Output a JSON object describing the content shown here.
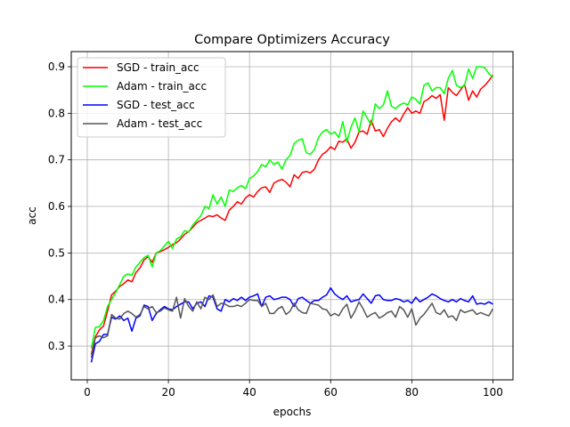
{
  "chart_data": {
    "type": "line",
    "title": "Compare Optimizers Accuracy",
    "xlabel": "epochs",
    "ylabel": "acc",
    "xlim": [
      -3.95,
      104.95
    ],
    "ylim": [
      0.2275,
      0.9325
    ],
    "xticks": [
      0,
      20,
      40,
      60,
      80,
      100
    ],
    "yticks": [
      0.3,
      0.4,
      0.5,
      0.6,
      0.7,
      0.8,
      0.9
    ],
    "grid": true,
    "legend_position": "top-left",
    "x": [
      1,
      2,
      3,
      4,
      5,
      6,
      7,
      8,
      9,
      10,
      11,
      12,
      13,
      14,
      15,
      16,
      17,
      18,
      19,
      20,
      21,
      22,
      23,
      24,
      25,
      26,
      27,
      28,
      29,
      30,
      31,
      32,
      33,
      34,
      35,
      36,
      37,
      38,
      39,
      40,
      41,
      42,
      43,
      44,
      45,
      46,
      47,
      48,
      49,
      50,
      51,
      52,
      53,
      54,
      55,
      56,
      57,
      58,
      59,
      60,
      61,
      62,
      63,
      64,
      65,
      66,
      67,
      68,
      69,
      70,
      71,
      72,
      73,
      74,
      75,
      76,
      77,
      78,
      79,
      80,
      81,
      82,
      83,
      84,
      85,
      86,
      87,
      88,
      89,
      90,
      91,
      92,
      93,
      94,
      95,
      96,
      97,
      98,
      99,
      100
    ],
    "series": [
      {
        "name": "SGD - train_acc",
        "color": "#ff0000",
        "values": [
          0.282,
          0.32,
          0.335,
          0.343,
          0.375,
          0.41,
          0.418,
          0.428,
          0.434,
          0.442,
          0.438,
          0.458,
          0.468,
          0.485,
          0.492,
          0.48,
          0.5,
          0.503,
          0.507,
          0.512,
          0.518,
          0.522,
          0.53,
          0.54,
          0.546,
          0.555,
          0.565,
          0.57,
          0.575,
          0.58,
          0.578,
          0.582,
          0.575,
          0.57,
          0.592,
          0.6,
          0.61,
          0.605,
          0.618,
          0.625,
          0.62,
          0.632,
          0.64,
          0.642,
          0.63,
          0.65,
          0.655,
          0.658,
          0.652,
          0.642,
          0.668,
          0.66,
          0.673,
          0.675,
          0.672,
          0.68,
          0.7,
          0.712,
          0.718,
          0.728,
          0.722,
          0.74,
          0.738,
          0.745,
          0.725,
          0.738,
          0.76,
          0.762,
          0.755,
          0.785,
          0.762,
          0.765,
          0.75,
          0.768,
          0.782,
          0.79,
          0.782,
          0.798,
          0.812,
          0.8,
          0.805,
          0.8,
          0.825,
          0.83,
          0.838,
          0.832,
          0.84,
          0.785,
          0.855,
          0.845,
          0.838,
          0.85,
          0.862,
          0.828,
          0.848,
          0.835,
          0.852,
          0.86,
          0.87,
          0.882
        ]
      },
      {
        "name": "Adam - train_acc",
        "color": "#00ff00",
        "values": [
          0.295,
          0.34,
          0.342,
          0.355,
          0.385,
          0.4,
          0.415,
          0.432,
          0.45,
          0.455,
          0.452,
          0.47,
          0.48,
          0.49,
          0.495,
          0.47,
          0.5,
          0.505,
          0.515,
          0.525,
          0.51,
          0.53,
          0.535,
          0.548,
          0.545,
          0.56,
          0.57,
          0.58,
          0.6,
          0.595,
          0.625,
          0.605,
          0.62,
          0.6,
          0.635,
          0.632,
          0.64,
          0.645,
          0.638,
          0.66,
          0.665,
          0.675,
          0.69,
          0.685,
          0.7,
          0.69,
          0.695,
          0.68,
          0.7,
          0.71,
          0.735,
          0.742,
          0.745,
          0.715,
          0.712,
          0.722,
          0.748,
          0.76,
          0.765,
          0.755,
          0.76,
          0.748,
          0.782,
          0.738,
          0.77,
          0.79,
          0.76,
          0.805,
          0.79,
          0.775,
          0.82,
          0.81,
          0.818,
          0.848,
          0.815,
          0.81,
          0.818,
          0.822,
          0.818,
          0.835,
          0.83,
          0.82,
          0.86,
          0.865,
          0.848,
          0.855,
          0.855,
          0.842,
          0.875,
          0.892,
          0.86,
          0.855,
          0.86,
          0.895,
          0.875,
          0.9,
          0.9,
          0.898,
          0.885,
          0.878
        ]
      },
      {
        "name": "SGD - test_acc",
        "color": "#0000ff",
        "values": [
          0.265,
          0.305,
          0.31,
          0.325,
          0.325,
          0.362,
          0.358,
          0.365,
          0.355,
          0.36,
          0.332,
          0.36,
          0.365,
          0.388,
          0.385,
          0.355,
          0.37,
          0.378,
          0.385,
          0.38,
          0.378,
          0.385,
          0.39,
          0.395,
          0.395,
          0.38,
          0.392,
          0.395,
          0.385,
          0.408,
          0.405,
          0.38,
          0.375,
          0.4,
          0.395,
          0.402,
          0.398,
          0.405,
          0.398,
          0.405,
          0.408,
          0.412,
          0.385,
          0.405,
          0.408,
          0.4,
          0.402,
          0.405,
          0.405,
          0.4,
          0.385,
          0.402,
          0.405,
          0.398,
          0.392,
          0.398,
          0.398,
          0.405,
          0.41,
          0.425,
          0.412,
          0.405,
          0.4,
          0.408,
          0.395,
          0.398,
          0.4,
          0.412,
          0.402,
          0.392,
          0.408,
          0.41,
          0.4,
          0.398,
          0.398,
          0.402,
          0.4,
          0.395,
          0.398,
          0.392,
          0.405,
          0.395,
          0.4,
          0.405,
          0.412,
          0.408,
          0.402,
          0.398,
          0.395,
          0.4,
          0.395,
          0.402,
          0.398,
          0.395,
          0.408,
          0.39,
          0.392,
          0.39,
          0.395,
          0.39
        ]
      },
      {
        "name": "Adam - test_acc",
        "color": "#555555",
        "values": [
          0.275,
          0.318,
          0.322,
          0.318,
          0.322,
          0.368,
          0.36,
          0.358,
          0.37,
          0.375,
          0.37,
          0.362,
          0.368,
          0.385,
          0.38,
          0.385,
          0.372,
          0.375,
          0.382,
          0.378,
          0.375,
          0.405,
          0.36,
          0.402,
          0.385,
          0.375,
          0.395,
          0.38,
          0.405,
          0.4,
          0.41,
          0.385,
          0.392,
          0.39,
          0.385,
          0.385,
          0.388,
          0.385,
          0.392,
          0.4,
          0.398,
          0.398,
          0.385,
          0.392,
          0.37,
          0.37,
          0.38,
          0.385,
          0.368,
          0.375,
          0.392,
          0.378,
          0.372,
          0.37,
          0.392,
          0.39,
          0.388,
          0.38,
          0.378,
          0.365,
          0.37,
          0.365,
          0.38,
          0.39,
          0.36,
          0.375,
          0.395,
          0.38,
          0.362,
          0.368,
          0.372,
          0.36,
          0.365,
          0.372,
          0.375,
          0.362,
          0.385,
          0.378,
          0.362,
          0.38,
          0.345,
          0.36,
          0.368,
          0.38,
          0.392,
          0.372,
          0.368,
          0.378,
          0.362,
          0.365,
          0.355,
          0.378,
          0.372,
          0.375,
          0.378,
          0.368,
          0.372,
          0.368,
          0.365,
          0.38
        ]
      }
    ]
  }
}
